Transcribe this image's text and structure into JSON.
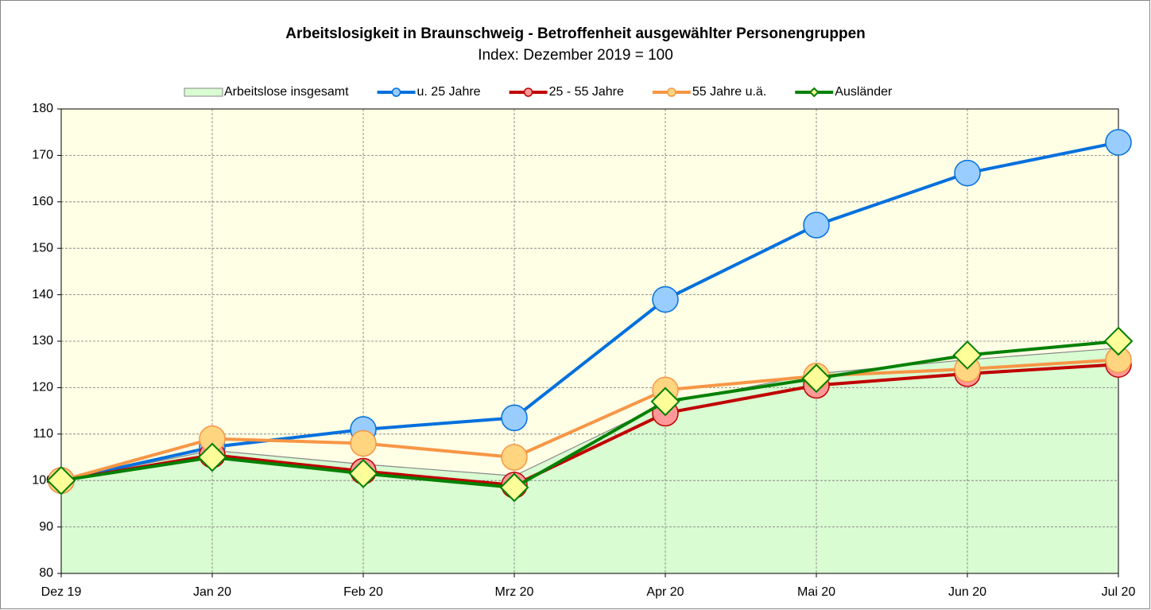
{
  "chart_data": {
    "type": "line",
    "title": "Arbeitslosigkeit in Braunschweig - Betroffenheit ausgewählter Personengruppen",
    "subtitle": "Index: Dezember 2019 = 100",
    "categories": [
      "Dez 19",
      "Jan 20",
      "Feb 20",
      "Mrz 20",
      "Apr 20",
      "Mai 20",
      "Jun 20",
      "Jul 20"
    ],
    "series": [
      {
        "name": "Arbeitslose insgesamt",
        "kind": "area",
        "color": "#d9fcd2",
        "values": [
          100,
          106.5,
          103.5,
          101,
          116.6,
          123,
          126,
          128.5
        ]
      },
      {
        "name": "u. 25 Jahre",
        "kind": "circle",
        "color": "#0070dd",
        "marker_color": "#99ccff",
        "values": [
          100,
          107.2,
          111,
          113.5,
          139,
          155,
          166.2,
          172.8
        ]
      },
      {
        "name": "25 - 55 Jahre",
        "kind": "circle",
        "color": "#c00000",
        "marker_color": "#ff9999",
        "values": [
          100,
          105.5,
          102,
          99,
          114.5,
          120.5,
          123,
          125
        ]
      },
      {
        "name": "55 Jahre u.ä.",
        "kind": "circle",
        "color": "#f79646",
        "marker_color": "#ffd580",
        "values": [
          100,
          109,
          108,
          105,
          119.5,
          122.5,
          124,
          126
        ]
      },
      {
        "name": "Ausländer",
        "kind": "diamond",
        "color": "#008000",
        "marker_color": "#ffff99",
        "values": [
          100,
          105,
          101.5,
          98.5,
          117,
          122,
          127,
          130
        ]
      }
    ],
    "ylim": [
      80,
      180
    ],
    "yticks": [
      80,
      90,
      100,
      110,
      120,
      130,
      140,
      150,
      160,
      170,
      180
    ],
    "grid": true,
    "legend": "top"
  }
}
